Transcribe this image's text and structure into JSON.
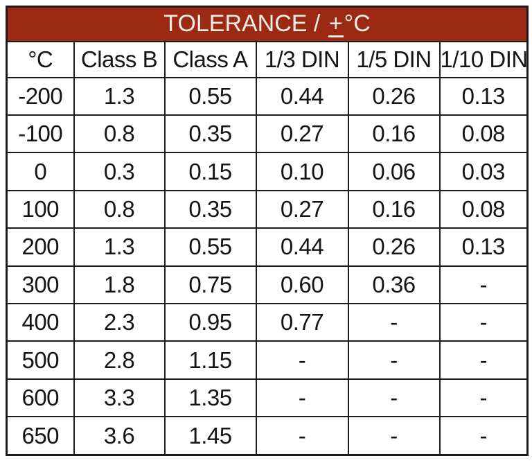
{
  "title": {
    "prefix": "TOLERANCE /",
    "plus": "+",
    "unit": "°C"
  },
  "colors": {
    "header_bg": "#9B2913",
    "header_text": "#F3EDE4",
    "border": "#1C1C1C",
    "cell_text": "#141414",
    "background": "#FFFFFF"
  },
  "table": {
    "columns": [
      "°C",
      "Class B",
      "Class A",
      "1/3 DIN",
      "1/5 DIN",
      "1/10 DIN"
    ],
    "rows": [
      [
        "-200",
        "1.3",
        "0.55",
        "0.44",
        "0.26",
        "0.13"
      ],
      [
        "-100",
        "0.8",
        "0.35",
        "0.27",
        "0.16",
        "0.08"
      ],
      [
        "0",
        "0.3",
        "0.15",
        "0.10",
        "0.06",
        "0.03"
      ],
      [
        "100",
        "0.8",
        "0.35",
        "0.27",
        "0.16",
        "0.08"
      ],
      [
        "200",
        "1.3",
        "0.55",
        "0.44",
        "0.26",
        "0.13"
      ],
      [
        "300",
        "1.8",
        "0.75",
        "0.60",
        "0.36",
        "-"
      ],
      [
        "400",
        "2.3",
        "0.95",
        "0.77",
        "-",
        "-"
      ],
      [
        "500",
        "2.8",
        "1.15",
        "-",
        "-",
        "-"
      ],
      [
        "600",
        "3.3",
        "1.35",
        "-",
        "-",
        "-"
      ],
      [
        "650",
        "3.6",
        "1.45",
        "-",
        "-",
        "-"
      ]
    ]
  },
  "chart_data": {
    "type": "table",
    "title": "TOLERANCE / ±°C",
    "columns": [
      "°C",
      "Class B",
      "Class A",
      "1/3 DIN",
      "1/5 DIN",
      "1/10 DIN"
    ],
    "rows": [
      [
        "-200",
        "1.3",
        "0.55",
        "0.44",
        "0.26",
        "0.13"
      ],
      [
        "-100",
        "0.8",
        "0.35",
        "0.27",
        "0.16",
        "0.08"
      ],
      [
        "0",
        "0.3",
        "0.15",
        "0.10",
        "0.06",
        "0.03"
      ],
      [
        "100",
        "0.8",
        "0.35",
        "0.27",
        "0.16",
        "0.08"
      ],
      [
        "200",
        "1.3",
        "0.55",
        "0.44",
        "0.26",
        "0.13"
      ],
      [
        "300",
        "1.8",
        "0.75",
        "0.60",
        "0.36",
        "-"
      ],
      [
        "400",
        "2.3",
        "0.95",
        "0.77",
        "-",
        "-"
      ],
      [
        "500",
        "2.8",
        "1.15",
        "-",
        "-",
        "-"
      ],
      [
        "600",
        "3.3",
        "1.35",
        "-",
        "-",
        "-"
      ],
      [
        "650",
        "3.6",
        "1.45",
        "-",
        "-",
        "-"
      ]
    ]
  }
}
